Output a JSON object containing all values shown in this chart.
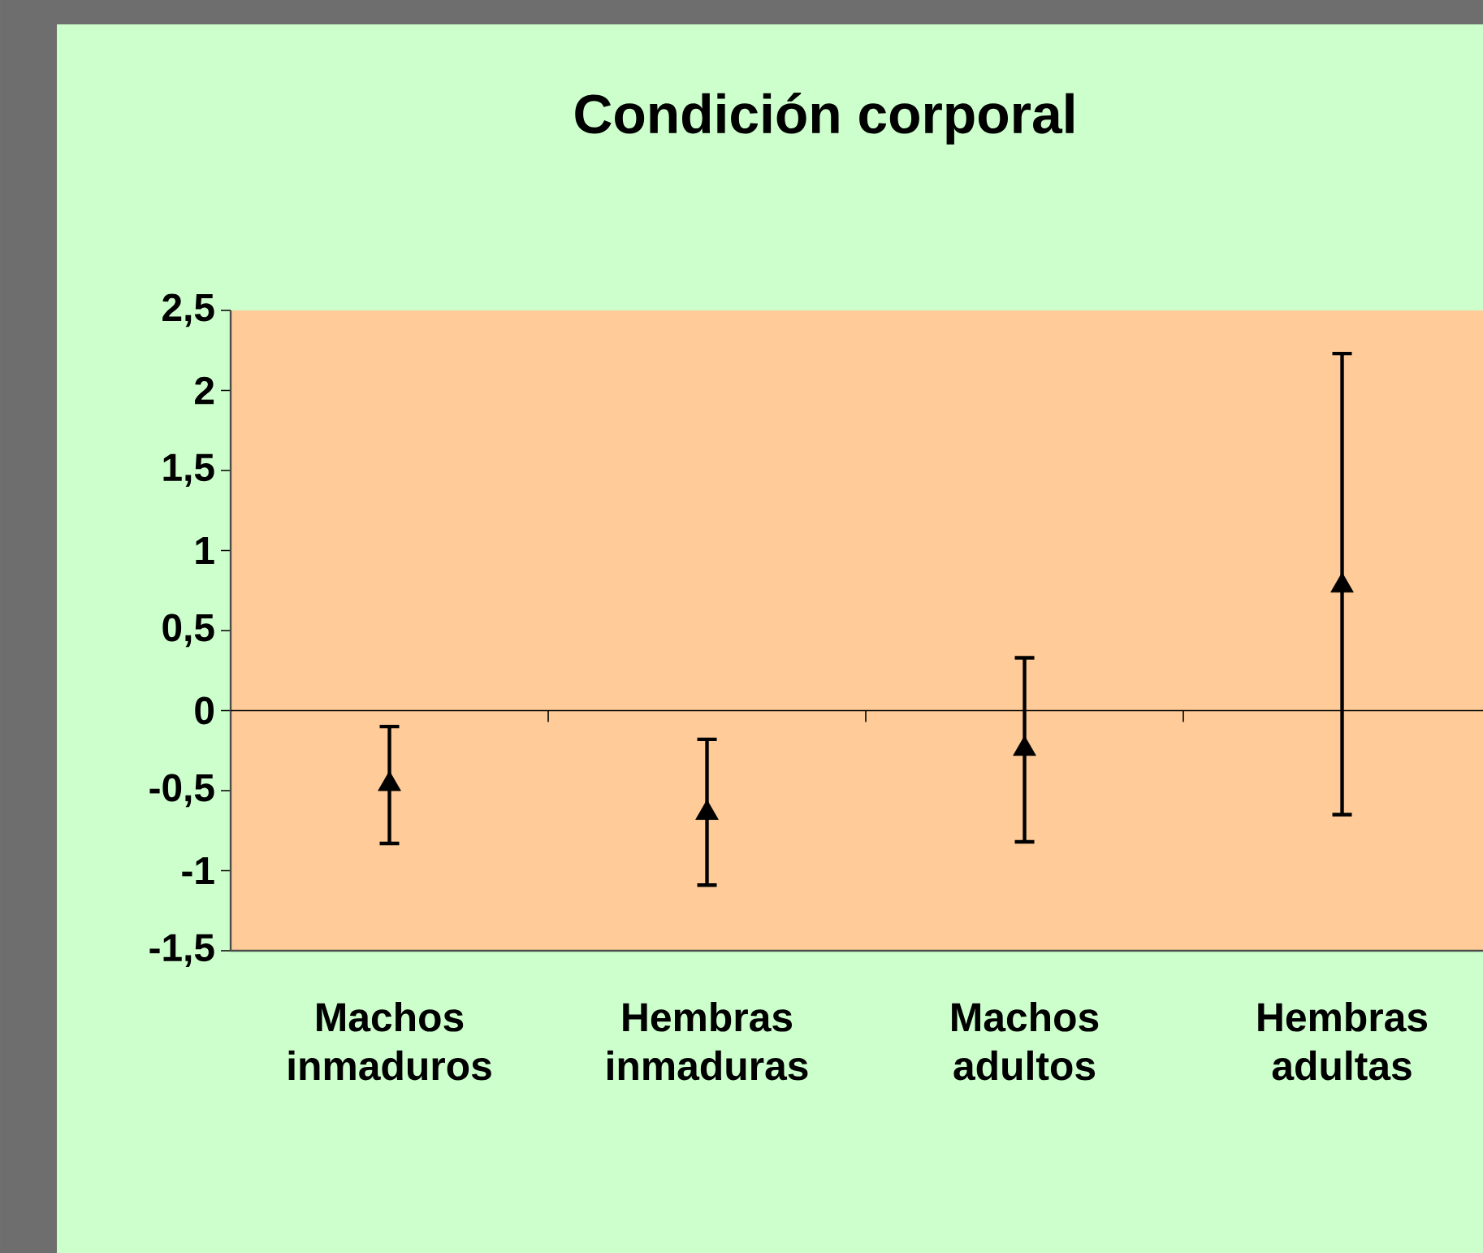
{
  "chart_data": {
    "type": "scatter",
    "title": "Condición corporal",
    "categories": [
      "Machos inmaduros",
      "Hembras inmaduras",
      "Machos adultos",
      "Hembras adultas"
    ],
    "values": [
      -0.46,
      -0.64,
      -0.24,
      0.78
    ],
    "errors": [
      [
        -0.83,
        -0.1
      ],
      [
        -1.09,
        -0.18
      ],
      [
        -0.82,
        0.33
      ],
      [
        -0.65,
        2.23
      ]
    ],
    "color": "#000000",
    "marker": "triangle",
    "ylim": [
      -1.5,
      2.5
    ],
    "yticks": [
      {
        "value": -1.5,
        "label": "-1,5"
      },
      -1,
      {
        "value": -0.5,
        "label": "-0,5"
      },
      0,
      {
        "value": 0.5,
        "label": "0,5"
      },
      1,
      {
        "value": 1.5,
        "label": "1,5"
      },
      2,
      {
        "value": 2.5,
        "label": "2,5"
      }
    ]
  }
}
